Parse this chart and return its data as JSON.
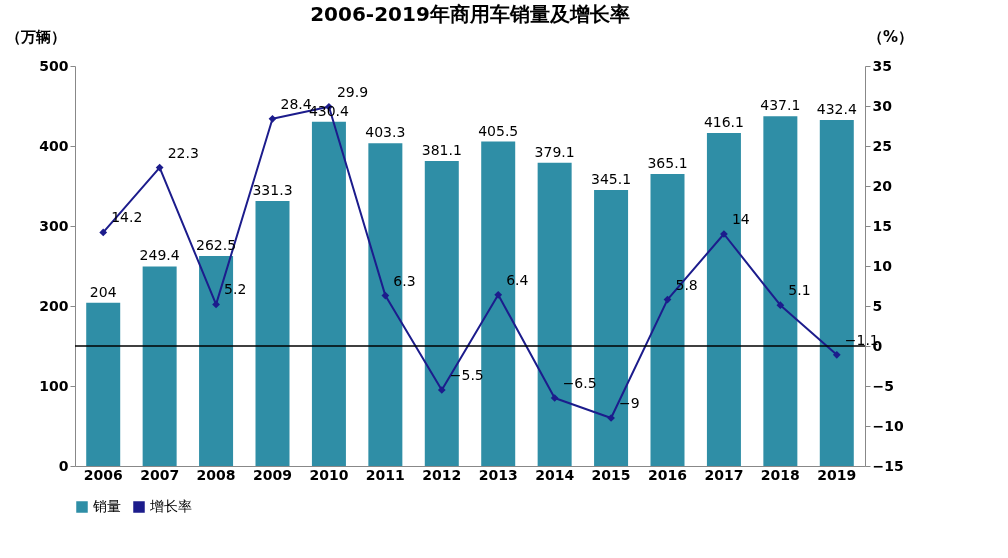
{
  "chart_data": {
    "type": "bar",
    "title": "2006-2019年商用车销量及增长率",
    "ylabel": "（万辆）",
    "y2label": "（%）",
    "categories": [
      "2006",
      "2007",
      "2008",
      "2009",
      "2010",
      "2011",
      "2012",
      "2013",
      "2014",
      "2015",
      "2016",
      "2017",
      "2018",
      "2019"
    ],
    "series": [
      {
        "name": "销量",
        "color": "#2f8ea6",
        "values": [
          204,
          249.4,
          262.5,
          331.3,
          430.4,
          403.3,
          381.1,
          405.5,
          379.1,
          345.1,
          365.1,
          416.1,
          437.1,
          432.4
        ]
      },
      {
        "name": "增长率",
        "type": "line",
        "axis": "y2",
        "color": "#1c1c8c",
        "values": [
          14.2,
          22.3,
          5.2,
          28.4,
          29.9,
          6.3,
          -5.5,
          6.4,
          -6.5,
          -9,
          5.8,
          14,
          5.1,
          -1.1
        ]
      }
    ],
    "ylim": [
      0,
      500
    ],
    "yticks": [
      0,
      100,
      200,
      300,
      400,
      500
    ],
    "y2lim": [
      -15,
      35
    ],
    "y2ticks": [
      -15,
      -10,
      -5,
      0,
      5,
      10,
      15,
      20,
      25,
      30,
      35
    ],
    "ref_lines": [
      {
        "axis": "y2",
        "value": 0,
        "color": "#000000"
      }
    ],
    "data_labels": true,
    "legend": "bottom",
    "grid": false,
    "marker": "diamond"
  }
}
